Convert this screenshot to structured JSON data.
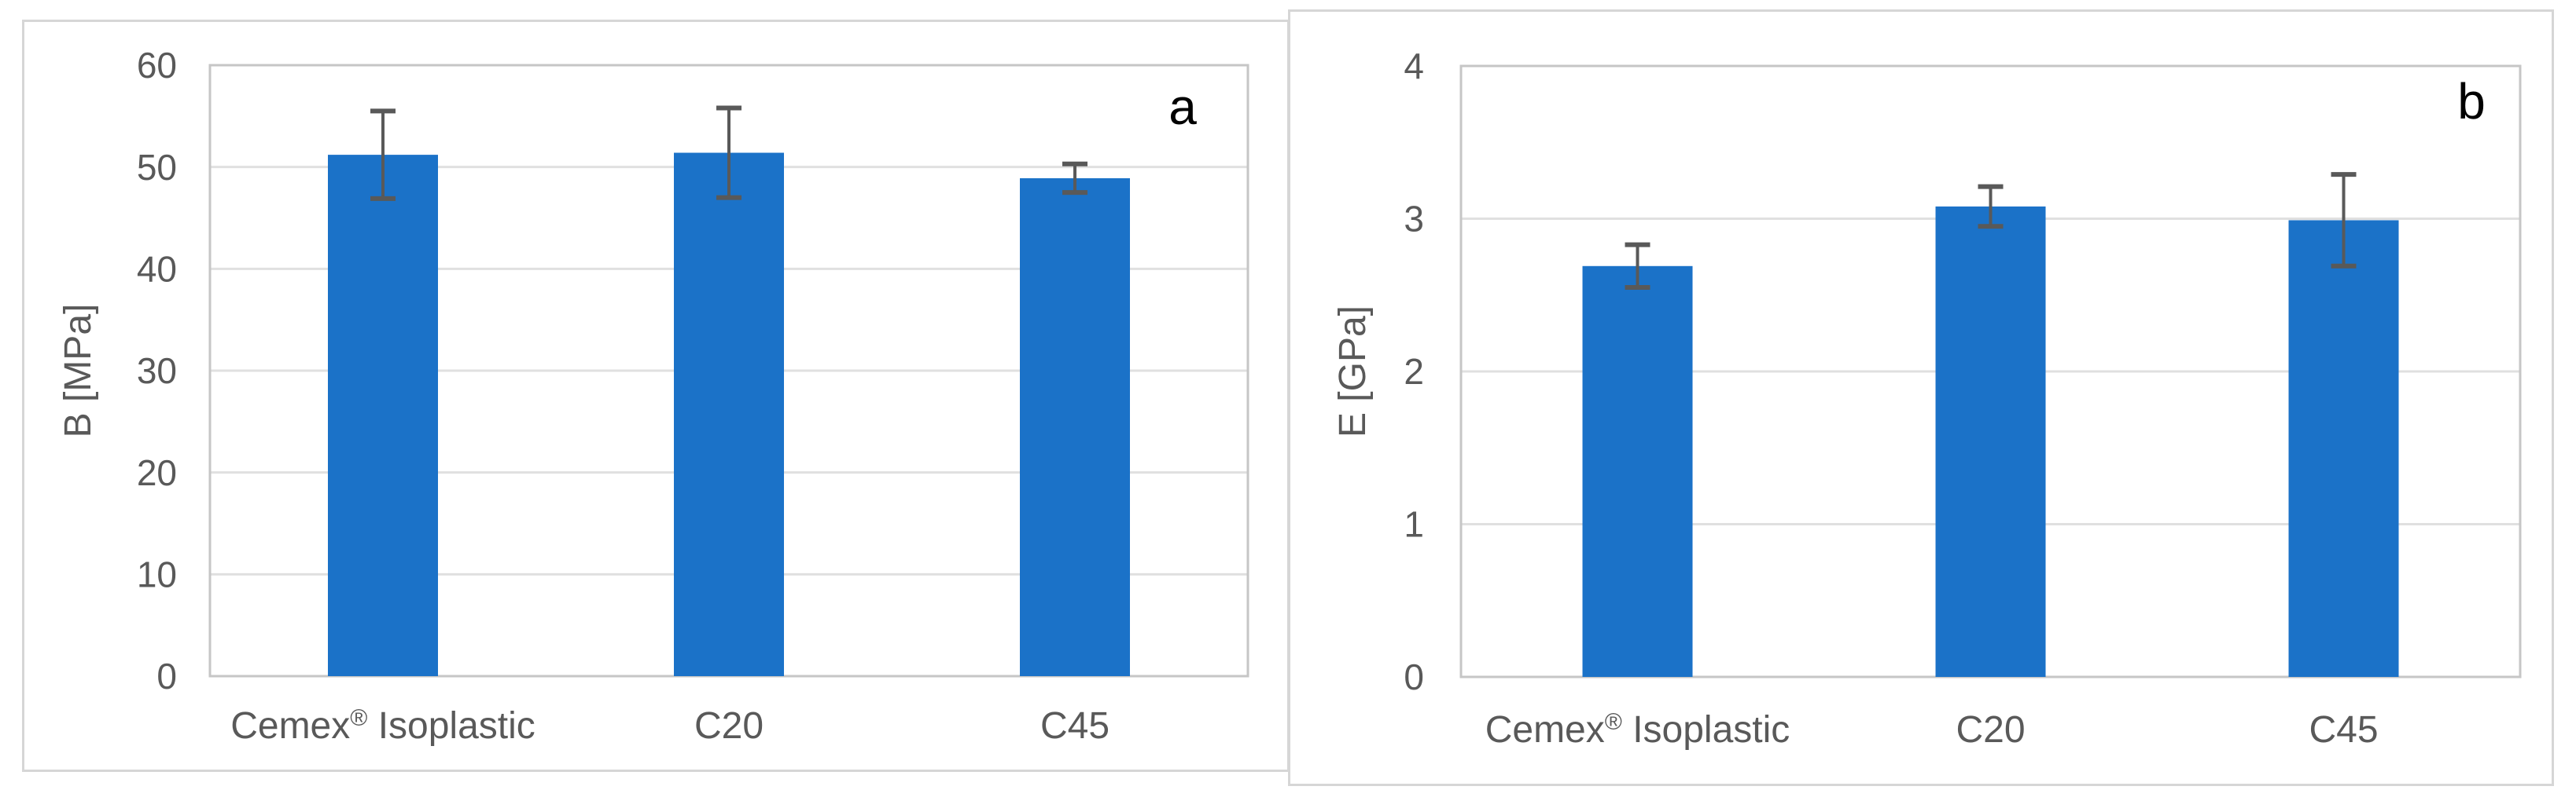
{
  "figure": {
    "background": "#ffffff",
    "panels": [
      {
        "corner_label": "a"
      },
      {
        "corner_label": "b"
      }
    ]
  },
  "chart_data": [
    {
      "type": "bar",
      "panel_label": "a",
      "title": "",
      "xlabel": "",
      "ylabel": "B [MPa]",
      "categories": [
        "Cemex® Isoplastic",
        "C20",
        "C45"
      ],
      "values": [
        51.2,
        51.4,
        48.9
      ],
      "errors": [
        4.3,
        4.4,
        1.4
      ],
      "ylim": [
        0,
        60
      ],
      "ytick_step": 10,
      "grid": true,
      "legend": "none"
    },
    {
      "type": "bar",
      "panel_label": "b",
      "title": "",
      "xlabel": "",
      "ylabel": "E [GPa]",
      "categories": [
        "Cemex® Isoplastic",
        "C20",
        "C45"
      ],
      "values": [
        2.69,
        3.08,
        2.99
      ],
      "errors": [
        0.14,
        0.13,
        0.3
      ],
      "ylim": [
        0,
        4
      ],
      "ytick_step": 1,
      "grid": true,
      "legend": "none"
    }
  ],
  "style": {
    "bar_color": "#1b72c8",
    "gridline_color": "#e0e0e0",
    "plot_border_color": "#c6c6c6",
    "error_bar_color": "#595959",
    "tick_label_color": "#595959",
    "category_label_color": "#595959",
    "axis_title_color": "#595959",
    "corner_label_color": "#000000"
  }
}
